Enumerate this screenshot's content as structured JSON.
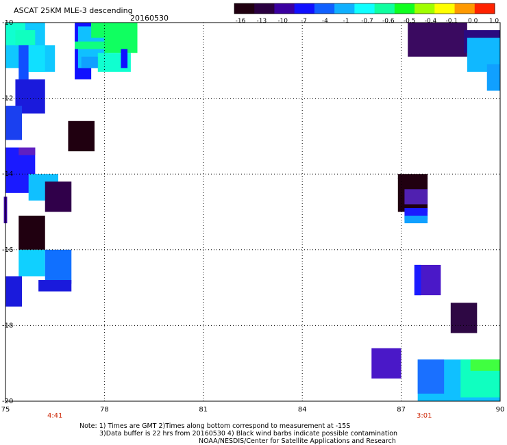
{
  "title": {
    "main": "ASCAT 25KM MLE-3 descending",
    "date": "20160530"
  },
  "colorbar": {
    "labels": [
      "-16",
      "-13",
      "-10",
      "-7",
      "-4",
      "-1",
      "-0.7",
      "-0.6",
      "-0.5",
      "-0.4",
      "-0.1",
      "0.0",
      "1.0"
    ],
    "colors": [
      "#200010",
      "#2a0040",
      "#3a00a0",
      "#1010ff",
      "#1060ff",
      "#10b0ff",
      "#10ffff",
      "#10ffa0",
      "#10ff20",
      "#a0ff00",
      "#ffff00",
      "#ff9900",
      "#ff2200"
    ]
  },
  "axes": {
    "x_ticks": [
      "75",
      "78",
      "81",
      "84",
      "87",
      "90"
    ],
    "y_ticks": [
      "-10",
      "-12",
      "-14",
      "-16",
      "-18",
      "-20"
    ],
    "xlim": [
      75,
      90
    ],
    "ylim": [
      -20,
      -10
    ]
  },
  "times": [
    {
      "label": "4:41",
      "lon": 76.5
    },
    {
      "label": "3:01",
      "lon": 87.7
    }
  ],
  "notes": [
    "Note: 1) Times are GMT 2)Times along bottom correspond to measurement at -15S",
    "3)Data buffer is 22 hrs from 20160530 4) Black wind barbs indicate possible contamination",
    "NOAA/NESDIS/Center for Satellite Applications and Research"
  ],
  "chart_data": {
    "type": "heatmap",
    "title": "ASCAT 25KM MLE-3 descending",
    "xlim": [
      75,
      90
    ],
    "ylim": [
      -20,
      -10
    ],
    "x_ticks": [
      75,
      78,
      81,
      84,
      87,
      90
    ],
    "y_ticks": [
      -10,
      -12,
      -14,
      -16,
      -18,
      -20
    ],
    "grid": true,
    "cells": [
      {
        "lon0": 75.0,
        "lon1": 76.2,
        "lat0": -11.2,
        "lat1": -10.0,
        "color": "#10c8ff"
      },
      {
        "lon0": 75.0,
        "lon1": 75.6,
        "lat0": -10.6,
        "lat1": -10.0,
        "color": "#10ffd0"
      },
      {
        "lon0": 75.3,
        "lon1": 75.9,
        "lat0": -10.6,
        "lat1": -10.2,
        "color": "#10ffc0"
      },
      {
        "lon0": 75.5,
        "lon1": 76.5,
        "lat0": -11.3,
        "lat1": -10.6,
        "color": "#10c8ff"
      },
      {
        "lon0": 75.4,
        "lon1": 75.7,
        "lat0": -11.5,
        "lat1": -10.6,
        "color": "#1050ff"
      },
      {
        "lon0": 75.7,
        "lon1": 76.2,
        "lat0": -11.3,
        "lat1": -10.6,
        "color": "#10e0ff"
      },
      {
        "lon0": 75.3,
        "lon1": 76.2,
        "lat0": -12.4,
        "lat1": -11.5,
        "color": "#1a1adc"
      },
      {
        "lon0": 75.0,
        "lon1": 75.5,
        "lat0": -13.1,
        "lat1": -12.2,
        "color": "#1a40f0"
      },
      {
        "lon0": 77.1,
        "lon1": 77.6,
        "lat0": -11.5,
        "lat1": -10.0,
        "color": "#1010ff"
      },
      {
        "lon0": 77.2,
        "lon1": 78.1,
        "lat0": -11.2,
        "lat1": -10.1,
        "color": "#10c0ff"
      },
      {
        "lon0": 77.6,
        "lon1": 78.2,
        "lat0": -10.4,
        "lat1": -10.0,
        "color": "#10ff60"
      },
      {
        "lon0": 78.0,
        "lon1": 79.0,
        "lat0": -10.8,
        "lat1": -10.0,
        "color": "#10ff60"
      },
      {
        "lon0": 77.1,
        "lon1": 78.0,
        "lat0": -10.7,
        "lat1": -10.5,
        "color": "#10ff80"
      },
      {
        "lon0": 77.8,
        "lon1": 78.8,
        "lat0": -11.3,
        "lat1": -10.8,
        "color": "#10ffd0"
      },
      {
        "lon0": 78.5,
        "lon1": 78.7,
        "lat0": -11.2,
        "lat1": -10.7,
        "color": "#1010ff"
      },
      {
        "lon0": 77.3,
        "lon1": 77.8,
        "lat0": -11.2,
        "lat1": -10.9,
        "color": "#10a0ff"
      },
      {
        "lon0": 76.9,
        "lon1": 77.7,
        "lat0": -13.4,
        "lat1": -12.6,
        "color": "#200010"
      },
      {
        "lon0": 75.0,
        "lon1": 75.9,
        "lat0": -14.5,
        "lat1": -13.3,
        "color": "#1a1aff"
      },
      {
        "lon0": 75.4,
        "lon1": 75.9,
        "lat0": -13.5,
        "lat1": -13.3,
        "color": "#6020c0"
      },
      {
        "lon0": 75.7,
        "lon1": 76.6,
        "lat0": -14.7,
        "lat1": -14.0,
        "color": "#10c0ff"
      },
      {
        "lon0": 76.2,
        "lon1": 77.0,
        "lat0": -15.0,
        "lat1": -14.2,
        "color": "#30004a"
      },
      {
        "lon0": 74.95,
        "lon1": 75.05,
        "lat0": -15.3,
        "lat1": -14.6,
        "color": "#3a00a0"
      },
      {
        "lon0": 75.4,
        "lon1": 76.2,
        "lat0": -16.0,
        "lat1": -15.1,
        "color": "#200010"
      },
      {
        "lon0": 75.4,
        "lon1": 76.2,
        "lat0": -16.7,
        "lat1": -16.0,
        "color": "#10d0ff"
      },
      {
        "lon0": 76.2,
        "lon1": 77.0,
        "lat0": -16.9,
        "lat1": -16.0,
        "color": "#1070ff"
      },
      {
        "lon0": 76.0,
        "lon1": 77.0,
        "lat0": -17.1,
        "lat1": -16.8,
        "color": "#1a1adc"
      },
      {
        "lon0": 75.0,
        "lon1": 75.5,
        "lat0": -17.5,
        "lat1": -16.7,
        "color": "#1a1adc"
      },
      {
        "lon0": 87.2,
        "lon1": 89.0,
        "lat0": -10.9,
        "lat1": -10.0,
        "color": "#3a0a60"
      },
      {
        "lon0": 88.9,
        "lon1": 90.0,
        "lat0": -10.8,
        "lat1": -10.2,
        "color": "#2a0a80"
      },
      {
        "lon0": 89.0,
        "lon1": 90.0,
        "lat0": -11.3,
        "lat1": -10.4,
        "color": "#10b8ff"
      },
      {
        "lon0": 89.6,
        "lon1": 90.0,
        "lat0": -11.8,
        "lat1": -11.1,
        "color": "#10a0ff"
      },
      {
        "lon0": 86.9,
        "lon1": 87.8,
        "lat0": -14.0,
        "lat1": -14.1,
        "color": "#200010"
      },
      {
        "lon0": 86.9,
        "lon1": 87.8,
        "lat0": -15.0,
        "lat1": -14.0,
        "color": "#200010"
      },
      {
        "lon0": 87.1,
        "lon1": 87.8,
        "lat0": -14.8,
        "lat1": -14.4,
        "color": "#5020b0"
      },
      {
        "lon0": 87.1,
        "lon1": 87.8,
        "lat0": -15.2,
        "lat1": -14.9,
        "color": "#1a1aff"
      },
      {
        "lon0": 87.1,
        "lon1": 87.8,
        "lat0": -15.3,
        "lat1": -15.1,
        "color": "#10a0ff"
      },
      {
        "lon0": 87.4,
        "lon1": 88.2,
        "lat0": -17.2,
        "lat1": -16.4,
        "color": "#4a18c8"
      },
      {
        "lon0": 87.4,
        "lon1": 87.6,
        "lat0": -17.2,
        "lat1": -16.4,
        "color": "#1a1aff"
      },
      {
        "lon0": 88.5,
        "lon1": 89.3,
        "lat0": -18.2,
        "lat1": -17.4,
        "color": "#2e0844"
      },
      {
        "lon0": 86.1,
        "lon1": 87.0,
        "lat0": -19.4,
        "lat1": -18.6,
        "color": "#4a18c8"
      },
      {
        "lon0": 87.5,
        "lon1": 90.0,
        "lat0": -20.0,
        "lat1": -18.9,
        "color": "#10c0ff"
      },
      {
        "lon0": 87.5,
        "lon1": 88.3,
        "lat0": -19.8,
        "lat1": -18.9,
        "color": "#1a70ff"
      },
      {
        "lon0": 88.8,
        "lon1": 90.0,
        "lat0": -19.9,
        "lat1": -18.9,
        "color": "#10ffc0"
      },
      {
        "lon0": 89.1,
        "lon1": 90.0,
        "lat0": -19.2,
        "lat1": -18.9,
        "color": "#40ff40"
      }
    ]
  }
}
